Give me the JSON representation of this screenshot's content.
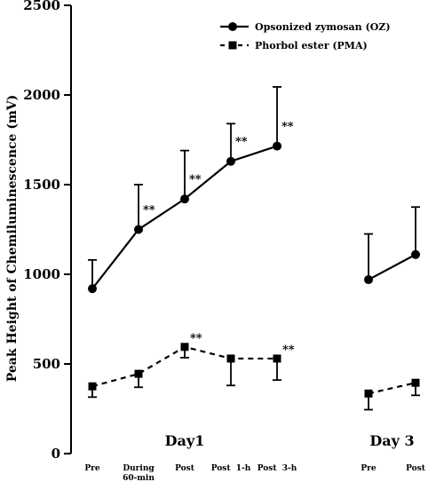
{
  "chart_data": {
    "type": "line",
    "xlabel": "",
    "ylabel": "Peak Height of Chemiluminescence (mV)",
    "ylim": [
      0,
      2500
    ],
    "yticks": [
      0,
      500,
      1000,
      1500,
      2000,
      2500
    ],
    "grid": false,
    "legend_position": "top-right",
    "categories": [
      "Pre",
      "During\n60-min",
      "Post",
      "Post  1-h",
      "Post  3-h",
      "Pre",
      "Post"
    ],
    "groups": [
      {
        "label": "Day1",
        "category_indices": [
          0,
          1,
          2,
          3,
          4
        ]
      },
      {
        "label": "Day 3",
        "category_indices": [
          5,
          6
        ]
      }
    ],
    "series": [
      {
        "name": "Opsonized zymosan (OZ)",
        "marker": "circle",
        "line_style": "solid",
        "segments": [
          {
            "x": [
              0,
              1,
              2,
              3,
              4
            ],
            "values": [
              920,
              1250,
              1420,
              1630,
              1715
            ],
            "error_up": [
              160,
              250,
              270,
              210,
              330
            ]
          },
          {
            "x": [
              5,
              6
            ],
            "values": [
              970,
              1110
            ],
            "error_up": [
              255,
              265
            ]
          }
        ],
        "annotations": [
          {
            "index": 1,
            "text": "**"
          },
          {
            "index": 2,
            "text": "**"
          },
          {
            "index": 3,
            "text": "**"
          },
          {
            "index": 4,
            "text": "**"
          }
        ]
      },
      {
        "name": "Phorbol ester (PMA)",
        "marker": "square",
        "line_style": "dashed",
        "segments": [
          {
            "x": [
              0,
              1,
              2,
              3,
              4
            ],
            "values": [
              375,
              445,
              595,
              530,
              530
            ],
            "error_down": [
              60,
              75,
              60,
              150,
              120
            ]
          },
          {
            "x": [
              5,
              6
            ],
            "values": [
              335,
              395
            ],
            "error_down": [
              90,
              70
            ]
          }
        ],
        "annotations": [
          {
            "index": 2,
            "text": "**"
          },
          {
            "index": 4,
            "text": "**"
          }
        ]
      }
    ]
  }
}
